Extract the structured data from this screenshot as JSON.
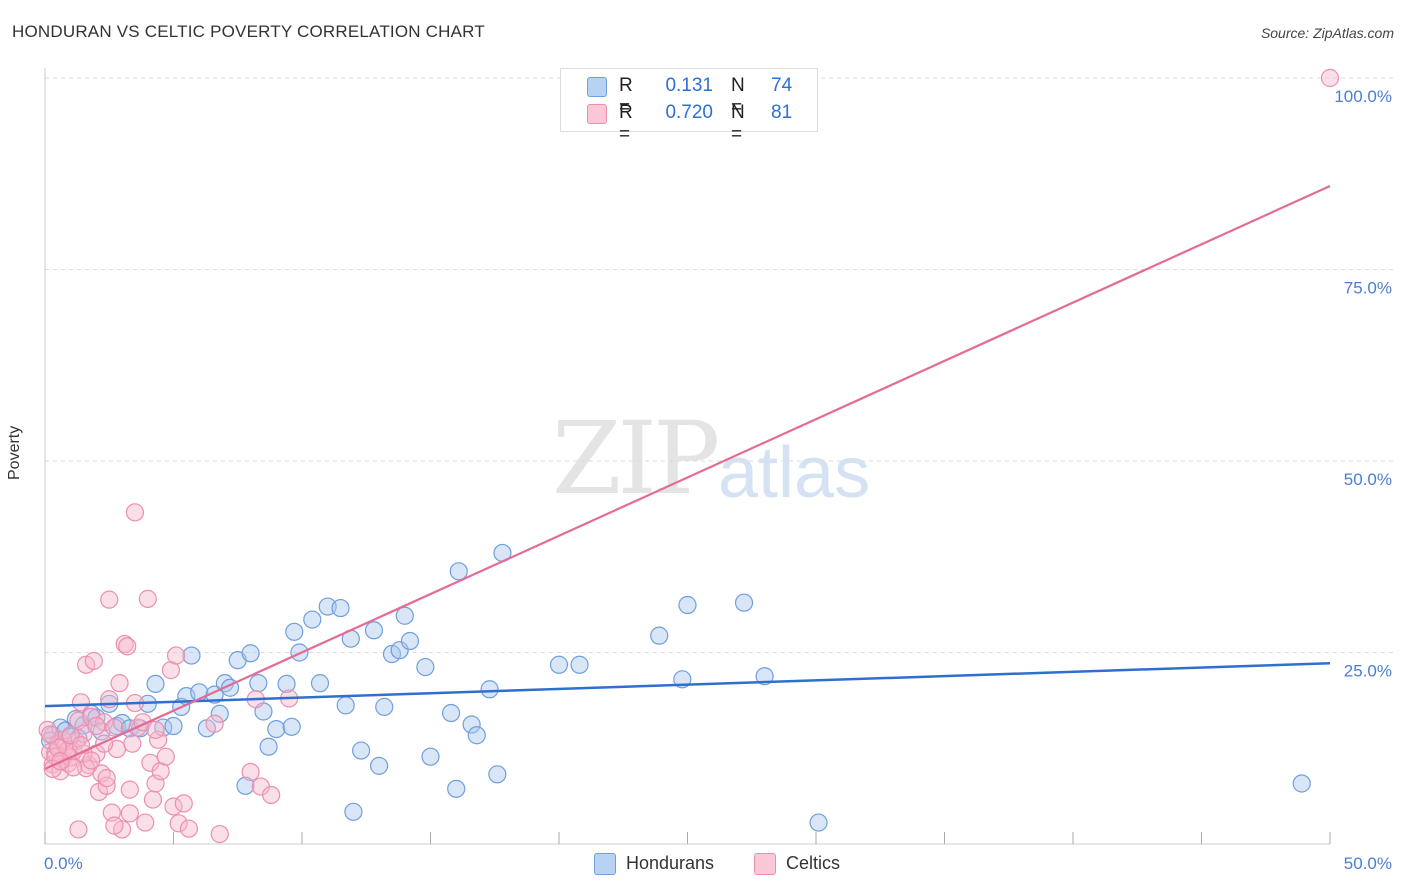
{
  "title": "HONDURAN VS CELTIC POVERTY CORRELATION CHART",
  "source": "Source: ZipAtlas.com",
  "watermark": {
    "zip": "ZIP",
    "atlas": "atlas"
  },
  "legend": {
    "hondurans": {
      "r_label": "R =",
      "r_value": "0.131",
      "n_label": "N =",
      "n_value": "74"
    },
    "celtics": {
      "r_label": "R =",
      "r_value": "0.720",
      "n_label": "N =",
      "n_value": "81"
    }
  },
  "bottom_legend": {
    "hondurans": "Hondurans",
    "celtics": "Celtics"
  },
  "colors": {
    "hondurans_fill": "#a9c8f0",
    "hondurans_stroke": "#6f9fdc",
    "hondurans_line": "#2f6fd0",
    "celtics_fill": "#f7b7cb",
    "celtics_stroke": "#ec8fae",
    "celtics_line": "#e46b96",
    "tick_text": "#4a7fd0",
    "grid": "#dddddd"
  },
  "chart_data": {
    "type": "scatter",
    "title": "HONDURAN VS CELTIC POVERTY CORRELATION CHART",
    "xlabel": "",
    "ylabel": "Poverty",
    "xlim": [
      0,
      50
    ],
    "ylim": [
      0,
      100
    ],
    "x_tick_labels": [
      "0.0%",
      "50.0%"
    ],
    "y_ticks": [
      25,
      50,
      75,
      100
    ],
    "y_tick_labels": [
      "25.0%",
      "50.0%",
      "75.0%",
      "100.0%"
    ],
    "grid": true,
    "legend_position": "top-center",
    "series": [
      {
        "name": "Hondurans",
        "r": 0.131,
        "n": 74,
        "trendline": [
          [
            0,
            18.0
          ],
          [
            50,
            23.6
          ]
        ],
        "points": [
          [
            0.3,
            14.2
          ],
          [
            0.6,
            15.2
          ],
          [
            0.8,
            14.8
          ],
          [
            1.0,
            14.0
          ],
          [
            1.2,
            16.3
          ],
          [
            1.5,
            15.5
          ],
          [
            1.8,
            17.0
          ],
          [
            2.0,
            16.5
          ],
          [
            2.2,
            14.7
          ],
          [
            2.5,
            18.3
          ],
          [
            2.8,
            15.4
          ],
          [
            3.0,
            15.8
          ],
          [
            3.3,
            15.1
          ],
          [
            3.7,
            15.1
          ],
          [
            4.0,
            18.3
          ],
          [
            4.3,
            20.9
          ],
          [
            4.6,
            15.2
          ],
          [
            5.0,
            15.4
          ],
          [
            5.3,
            17.9
          ],
          [
            5.5,
            19.3
          ],
          [
            5.7,
            24.6
          ],
          [
            6.0,
            19.8
          ],
          [
            6.3,
            15.1
          ],
          [
            6.6,
            19.5
          ],
          [
            6.8,
            17.0
          ],
          [
            7.0,
            21.0
          ],
          [
            7.2,
            20.4
          ],
          [
            7.5,
            24.0
          ],
          [
            7.8,
            7.6
          ],
          [
            8.0,
            24.9
          ],
          [
            8.3,
            21.0
          ],
          [
            8.5,
            17.3
          ],
          [
            8.7,
            12.7
          ],
          [
            9.0,
            15.0
          ],
          [
            9.4,
            20.9
          ],
          [
            9.6,
            15.3
          ],
          [
            9.7,
            27.7
          ],
          [
            9.9,
            25.0
          ],
          [
            10.4,
            29.3
          ],
          [
            10.7,
            21.0
          ],
          [
            11.0,
            31.0
          ],
          [
            11.5,
            30.8
          ],
          [
            11.7,
            18.1
          ],
          [
            11.9,
            26.8
          ],
          [
            12.0,
            4.2
          ],
          [
            12.3,
            12.2
          ],
          [
            12.8,
            27.9
          ],
          [
            13.0,
            10.2
          ],
          [
            13.2,
            17.9
          ],
          [
            13.5,
            24.8
          ],
          [
            13.8,
            25.3
          ],
          [
            14.0,
            29.8
          ],
          [
            14.2,
            26.5
          ],
          [
            14.8,
            23.1
          ],
          [
            15.0,
            11.4
          ],
          [
            15.8,
            17.1
          ],
          [
            16.0,
            7.2
          ],
          [
            16.1,
            35.6
          ],
          [
            16.6,
            15.6
          ],
          [
            16.8,
            14.2
          ],
          [
            17.3,
            20.2
          ],
          [
            17.6,
            9.1
          ],
          [
            17.8,
            38.0
          ],
          [
            20.0,
            23.4
          ],
          [
            20.8,
            23.4
          ],
          [
            23.9,
            27.2
          ],
          [
            24.8,
            21.5
          ],
          [
            25.0,
            31.2
          ],
          [
            27.2,
            31.5
          ],
          [
            28.0,
            21.9
          ],
          [
            30.1,
            2.8
          ],
          [
            48.9,
            7.9
          ],
          [
            0.2,
            13.5
          ],
          [
            1.3,
            13.8
          ]
        ]
      },
      {
        "name": "Celtics",
        "r": 0.72,
        "n": 81,
        "trendline": [
          [
            0,
            9.8
          ],
          [
            50,
            85.9
          ]
        ],
        "points": [
          [
            0.1,
            14.9
          ],
          [
            0.2,
            12.0
          ],
          [
            0.3,
            10.4
          ],
          [
            0.4,
            11.9
          ],
          [
            0.5,
            13.0
          ],
          [
            0.6,
            9.5
          ],
          [
            0.7,
            11.0
          ],
          [
            0.8,
            12.7
          ],
          [
            0.9,
            10.5
          ],
          [
            1.0,
            11.3
          ],
          [
            1.1,
            12.1
          ],
          [
            1.2,
            13.4
          ],
          [
            1.3,
            16.1
          ],
          [
            1.4,
            18.5
          ],
          [
            1.5,
            14.4
          ],
          [
            1.6,
            23.4
          ],
          [
            1.7,
            10.3
          ],
          [
            1.8,
            16.6
          ],
          [
            1.9,
            23.9
          ],
          [
            2.0,
            11.8
          ],
          [
            2.1,
            6.8
          ],
          [
            2.2,
            9.2
          ],
          [
            2.3,
            15.9
          ],
          [
            2.4,
            7.6
          ],
          [
            2.5,
            18.9
          ],
          [
            2.6,
            4.1
          ],
          [
            2.7,
            15.2
          ],
          [
            2.8,
            12.4
          ],
          [
            2.9,
            21.0
          ],
          [
            3.0,
            1.9
          ],
          [
            3.1,
            26.1
          ],
          [
            3.2,
            25.8
          ],
          [
            3.3,
            7.1
          ],
          [
            3.4,
            13.1
          ],
          [
            3.5,
            43.3
          ],
          [
            3.6,
            15.2
          ],
          [
            3.8,
            15.9
          ],
          [
            4.0,
            32.0
          ],
          [
            4.1,
            10.6
          ],
          [
            4.2,
            5.8
          ],
          [
            4.3,
            7.9
          ],
          [
            4.4,
            13.6
          ],
          [
            4.5,
            9.5
          ],
          [
            4.7,
            11.4
          ],
          [
            4.9,
            22.7
          ],
          [
            5.0,
            4.9
          ],
          [
            5.1,
            24.6
          ],
          [
            5.2,
            2.7
          ],
          [
            5.4,
            5.3
          ],
          [
            5.6,
            2.0
          ],
          [
            6.6,
            15.7
          ],
          [
            6.8,
            1.3
          ],
          [
            8.0,
            9.4
          ],
          [
            8.2,
            18.9
          ],
          [
            8.4,
            7.5
          ],
          [
            8.8,
            6.4
          ],
          [
            9.5,
            19.0
          ],
          [
            1.3,
            1.9
          ],
          [
            2.5,
            31.9
          ],
          [
            1.6,
            9.9
          ],
          [
            0.4,
            11.4
          ],
          [
            1.1,
            10.0
          ],
          [
            0.7,
            13.6
          ],
          [
            0.9,
            12.3
          ],
          [
            1.5,
            11.8
          ],
          [
            2.0,
            15.4
          ],
          [
            2.3,
            13.1
          ],
          [
            3.5,
            18.4
          ],
          [
            4.3,
            14.9
          ],
          [
            2.4,
            8.6
          ],
          [
            0.3,
            9.8
          ],
          [
            0.5,
            12.6
          ],
          [
            1.0,
            14.2
          ],
          [
            1.8,
            10.9
          ],
          [
            0.2,
            14.3
          ],
          [
            2.7,
            2.4
          ],
          [
            3.3,
            4.0
          ],
          [
            3.9,
            2.8
          ],
          [
            0.6,
            10.8
          ],
          [
            1.4,
            12.9
          ],
          [
            50.0,
            100.0
          ]
        ]
      }
    ]
  }
}
